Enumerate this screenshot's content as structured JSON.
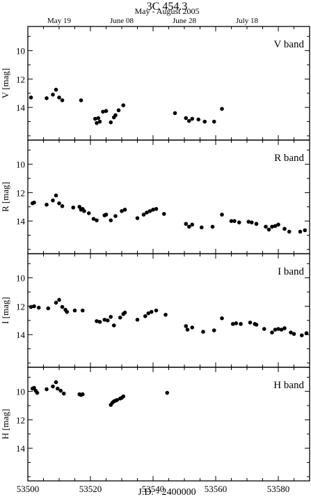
{
  "chart_data": {
    "type": "scatter",
    "title": "3C 454.3",
    "subtitle": "May - August 2005",
    "xlabel": "J.D. - 2400000",
    "xlim": [
      53500,
      53590
    ],
    "x_ticks": [
      53500,
      53520,
      53540,
      53560,
      53580
    ],
    "x_tick_labels": [
      "53500",
      "53520",
      "53540",
      "53560",
      "53580"
    ],
    "top_axis": {
      "ticks": [
        53510,
        53530,
        53550,
        53570
      ],
      "labels": [
        "May 19",
        "June 08",
        "June 28",
        "July 18"
      ]
    },
    "grid": false,
    "panels": [
      {
        "band": "V band",
        "ylabel": "V [mag]",
        "ylim": [
          8.3,
          16.3
        ],
        "y_ticks": [
          10,
          12,
          14
        ],
        "y_tick_labels": [
          "10",
          "12",
          "14"
        ],
        "x": [
          53501.0,
          53506.0,
          53508.0,
          53509.0,
          53510.0,
          53511.0,
          53517.0,
          53521.5,
          53522.0,
          53522.5,
          53523.0,
          53524.0,
          53525.0,
          53526.5,
          53527.5,
          53528.0,
          53529.0,
          53530.5,
          53547.0,
          53550.5,
          53551.5,
          53552.5,
          53554.5,
          53556.5,
          53559.5,
          53562.0
        ],
        "y": [
          13.3,
          13.35,
          13.1,
          12.75,
          13.3,
          13.5,
          13.5,
          14.8,
          15.1,
          14.75,
          15.0,
          14.3,
          14.25,
          15.05,
          14.7,
          14.55,
          14.2,
          13.85,
          14.4,
          14.75,
          14.95,
          14.8,
          14.85,
          15.0,
          15.0,
          14.1
        ]
      },
      {
        "band": "R band",
        "ylabel": "R [mag]",
        "ylim": [
          8.3,
          16.3
        ],
        "y_ticks": [
          10,
          12,
          14
        ],
        "y_tick_labels": [
          "10",
          "12",
          "14"
        ],
        "x": [
          53501.5,
          53502.0,
          53506.0,
          53508.0,
          53509.0,
          53510.0,
          53511.0,
          53514.5,
          53516.5,
          53517.0,
          53517.5,
          53518.0,
          53519.5,
          53521.0,
          53522.0,
          53524.5,
          53525.0,
          53526.5,
          53528.0,
          53530.0,
          53531.0,
          53535.0,
          53537.0,
          53538.0,
          53539.0,
          53540.0,
          53541.0,
          53543.5,
          53550.5,
          53551.5,
          53552.5,
          53555.5,
          53559.0,
          53562.0,
          53565.0,
          53566.0,
          53567.5,
          53570.5,
          53571.5,
          53573.0,
          53576.0,
          53577.0,
          53578.0,
          53579.0,
          53580.0,
          53582.0,
          53583.5,
          53587.0,
          53588.5
        ],
        "y": [
          12.75,
          12.7,
          12.85,
          12.55,
          12.2,
          12.75,
          12.95,
          13.05,
          13.0,
          13.2,
          13.15,
          13.3,
          13.45,
          13.85,
          13.95,
          13.6,
          13.55,
          13.95,
          13.65,
          13.3,
          13.2,
          13.8,
          13.55,
          13.4,
          13.3,
          13.2,
          13.15,
          13.5,
          14.2,
          14.4,
          14.25,
          14.45,
          14.4,
          13.55,
          14.0,
          14.0,
          14.1,
          14.05,
          14.1,
          14.2,
          14.4,
          14.6,
          14.4,
          14.35,
          14.25,
          14.55,
          14.75,
          14.75,
          14.65
        ]
      },
      {
        "band": "I band",
        "ylabel": "I [mag]",
        "ylim": [
          8.3,
          16.3
        ],
        "y_ticks": [
          10,
          12,
          14
        ],
        "y_tick_labels": [
          "10",
          "12",
          "14"
        ],
        "x": [
          53501.0,
          53502.0,
          53503.5,
          53506.5,
          53509.0,
          53510.0,
          53511.0,
          53512.0,
          53512.5,
          53515.0,
          53517.5,
          53522.0,
          53523.0,
          53524.5,
          53525.5,
          53526.5,
          53527.5,
          53529.5,
          53530.5,
          53531.0,
          53535.0,
          53537.5,
          53538.5,
          53539.5,
          53541.0,
          53544.0,
          53550.5,
          53551.0,
          53552.5,
          53556.0,
          53559.5,
          53562.0,
          53565.5,
          53566.5,
          53568.0,
          53571.0,
          53572.5,
          53573.0,
          53575.5,
          53578.0,
          53579.0,
          53580.0,
          53581.0,
          53582.0,
          53584.0,
          53585.0,
          53587.5,
          53589.0
        ],
        "y": [
          12.05,
          12.0,
          12.1,
          12.15,
          11.75,
          11.55,
          12.05,
          12.25,
          12.4,
          12.3,
          12.3,
          13.05,
          13.1,
          12.95,
          13.0,
          12.75,
          13.35,
          12.8,
          12.55,
          12.45,
          12.95,
          12.7,
          12.5,
          12.4,
          12.3,
          12.6,
          13.4,
          13.65,
          13.5,
          13.8,
          13.7,
          12.85,
          13.25,
          13.2,
          13.25,
          13.15,
          13.25,
          13.3,
          13.6,
          13.85,
          13.65,
          13.6,
          13.65,
          13.55,
          13.85,
          13.95,
          14.05,
          13.9
        ]
      },
      {
        "band": "H band",
        "ylabel": "H [mag]",
        "ylim": [
          8.3,
          16.3
        ],
        "y_ticks": [
          10,
          12,
          14
        ],
        "y_tick_labels": [
          "10",
          "12",
          "14"
        ],
        "x": [
          53501.5,
          53502.0,
          53502.5,
          53503.0,
          53506.0,
          53508.0,
          53509.0,
          53509.5,
          53510.5,
          53511.5,
          53516.5,
          53517.0,
          53517.5,
          53526.5,
          53527.0,
          53527.5,
          53528.0,
          53528.5,
          53529.5,
          53530.0,
          53530.5,
          53544.5
        ],
        "y": [
          9.8,
          9.75,
          9.95,
          10.1,
          9.85,
          9.65,
          9.35,
          9.8,
          9.95,
          10.15,
          10.2,
          10.25,
          10.2,
          10.95,
          10.8,
          10.7,
          10.65,
          10.6,
          10.5,
          10.45,
          10.35,
          10.1
        ]
      }
    ]
  }
}
